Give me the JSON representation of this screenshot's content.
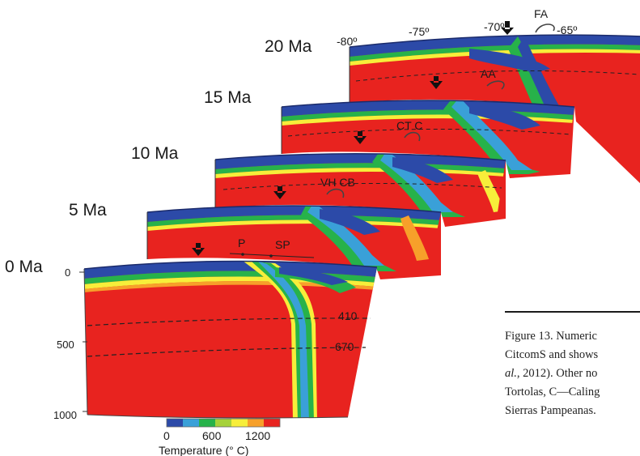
{
  "panels": [
    {
      "age": "20 Ma",
      "markers": [
        "FA"
      ]
    },
    {
      "age": "15 Ma",
      "markers": [
        "AA"
      ]
    },
    {
      "age": "10 Ma",
      "markers": [
        "CT C"
      ]
    },
    {
      "age": "5 Ma",
      "markers": [
        "VH CB"
      ]
    },
    {
      "age": "0 Ma",
      "markers": [
        "P",
        "SP"
      ]
    }
  ],
  "longitudes": [
    "-80º",
    "-75º",
    "-70º",
    "-65º"
  ],
  "depth_labels": [
    "0",
    "500",
    "1000"
  ],
  "isotherm_labels": [
    "410",
    "670"
  ],
  "colorbar": {
    "title": "Temperature (° C)",
    "ticks": [
      "0",
      "600",
      "1200"
    ],
    "colors": [
      "#2c4aa8",
      "#3aa0d8",
      "#27b24a",
      "#a6d23a",
      "#f7ee3a",
      "#f7a02a",
      "#e8231f"
    ]
  },
  "caption": {
    "line1": "Figure 13. Numeric",
    "line2": "CitcomS and shows",
    "line3_italic": "al.",
    "line3_rest": ", 2012). Other no",
    "line4": "Tortolas, C—Caling",
    "line5": "Sierras Pampeanas."
  }
}
